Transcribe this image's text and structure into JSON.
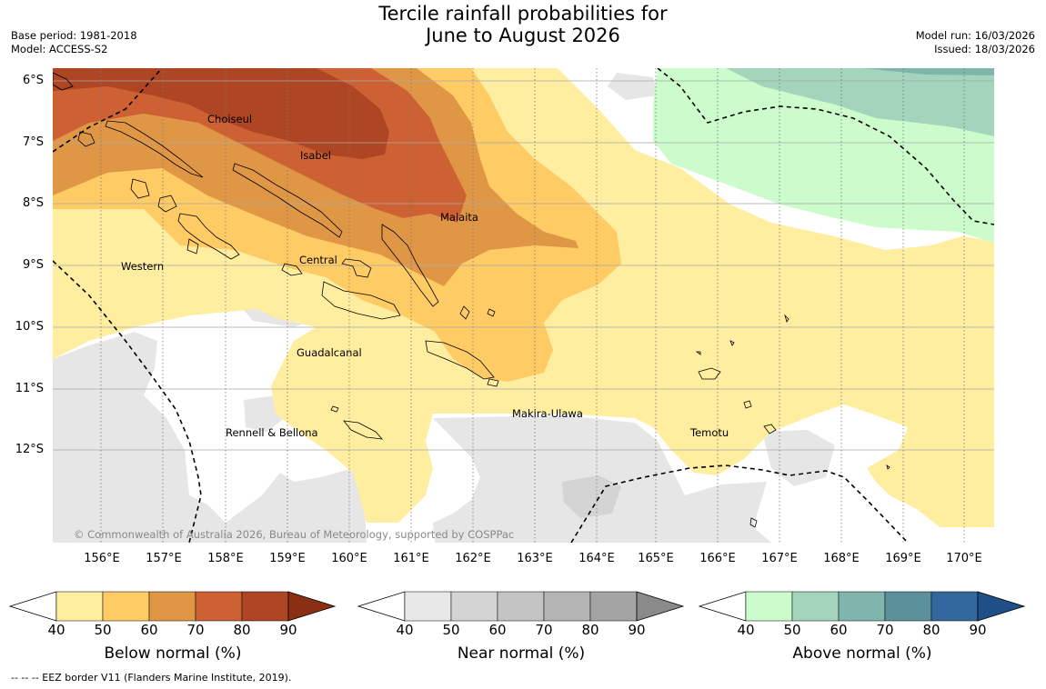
{
  "title": {
    "line1": "Tercile rainfall probabilities for",
    "line2": "June to August 2026"
  },
  "meta_left": {
    "base_period": "Base period: 1981-2018",
    "model": "Model: ACCESS-S2"
  },
  "meta_right": {
    "model_run": "Model run: 16/03/2026",
    "issued": "Issued: 18/03/2026"
  },
  "map": {
    "lat_ticks": [
      "6°S",
      "7°S",
      "8°S",
      "9°S",
      "10°S",
      "11°S",
      "12°S"
    ],
    "lon_ticks": [
      "156°E",
      "157°E",
      "158°E",
      "159°E",
      "160°E",
      "161°E",
      "162°E",
      "163°E",
      "164°E",
      "165°E",
      "166°E",
      "167°E",
      "168°E",
      "169°E",
      "170°E"
    ],
    "regions": {
      "choiseul": "Choiseul",
      "isabel": "Isabel",
      "malaita": "Malaita",
      "central": "Central",
      "western": "Western",
      "guadalcanal": "Guadalcanal",
      "makira": "Makira-Ulawa",
      "rennell": "Rennell & Bellona",
      "temotu": "Temotu"
    },
    "copyright": "© Commonwealth of Australia 2026, Bureau of Meteorology, supported by COSPPac"
  },
  "colorbars": {
    "ticks": [
      "40",
      "50",
      "60",
      "70",
      "80",
      "90"
    ],
    "below": {
      "label": "Below normal (%)",
      "colors": [
        "#ffeea0",
        "#fecb65",
        "#e09745",
        "#cd6133",
        "#ae4624",
        "#8b2f14"
      ]
    },
    "near": {
      "label": "Near normal (%)",
      "colors": [
        "#e8e8e8",
        "#d4d4d4",
        "#c4c4c4",
        "#b4b4b4",
        "#a4a4a4",
        "#8a8a8a"
      ]
    },
    "above": {
      "label": "Above normal (%)",
      "colors": [
        "#ccfccc",
        "#a2d5bb",
        "#80b5ad",
        "#5c919b",
        "#32689d",
        "#1f4f87"
      ]
    }
  },
  "footer": {
    "eez_note": "--  --  -- EEZ border V11 (Flanders Marine Institute, 2019)."
  }
}
